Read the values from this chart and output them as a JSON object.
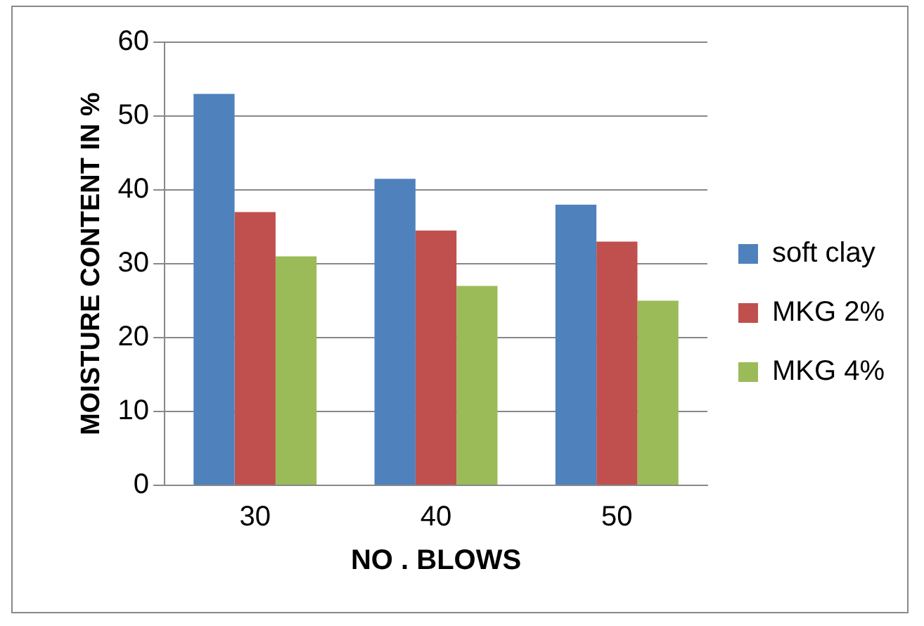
{
  "chart_data": {
    "type": "bar",
    "xlabel": "NO . BLOWS",
    "ylabel": "MOISTURE CONTENT IN %",
    "categories": [
      "30",
      "40",
      "50"
    ],
    "series": [
      {
        "name": "soft clay",
        "color": "#4f81bd",
        "values": [
          53,
          41.5,
          38
        ]
      },
      {
        "name": "MKG 2%",
        "color": "#c0504d",
        "values": [
          37,
          34.5,
          33
        ]
      },
      {
        "name": "MKG 4%",
        "color": "#9bbb59",
        "values": [
          31,
          27,
          25
        ]
      }
    ],
    "ylim": [
      0,
      60
    ],
    "yticks": [
      0,
      10,
      20,
      30,
      40,
      50,
      60
    ],
    "grid": "y",
    "legend": "right"
  }
}
